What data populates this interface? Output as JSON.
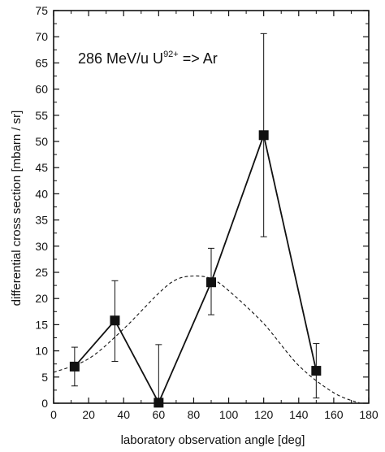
{
  "chart_data": {
    "type": "line",
    "xlabel": "laboratory observation angle [deg]",
    "ylabel": "differential cross section [mbarn / sr]",
    "xlim": [
      0,
      180
    ],
    "ylim": [
      0,
      75
    ],
    "xticks": [
      "0",
      "20",
      "40",
      "60",
      "80",
      "100",
      "120",
      "140",
      "160",
      "180"
    ],
    "yticks": [
      "0",
      "5",
      "10",
      "15",
      "20",
      "25",
      "30",
      "35",
      "40",
      "45",
      "50",
      "55",
      "60",
      "65",
      "70",
      "75"
    ],
    "annotation": {
      "main": "286 MeV/u  U",
      "superscript": "92+",
      "rest": " => Ar"
    },
    "grid": false,
    "series": [
      {
        "style": "solid line with filled square markers and error bars",
        "x": [
          12,
          35,
          60,
          90,
          120,
          150
        ],
        "y": [
          7.0,
          15.8,
          0.1,
          23.1,
          51.2,
          6.2
        ],
        "y_err_low": [
          3.3,
          8.0,
          0.0,
          16.9,
          31.8,
          1.0
        ],
        "y_err_high": [
          10.7,
          23.4,
          11.2,
          29.6,
          70.6,
          11.4
        ]
      },
      {
        "style": "dashed curve",
        "x": [
          0,
          20,
          40,
          60,
          70,
          80,
          90,
          100,
          120,
          140,
          160,
          175
        ],
        "y": [
          5.9,
          8.5,
          14.2,
          21.0,
          23.6,
          24.3,
          23.8,
          21.5,
          15.2,
          7.2,
          2.0,
          0.0
        ]
      }
    ],
    "colors": {
      "ink": "#111111",
      "background": "#ffffff"
    }
  }
}
